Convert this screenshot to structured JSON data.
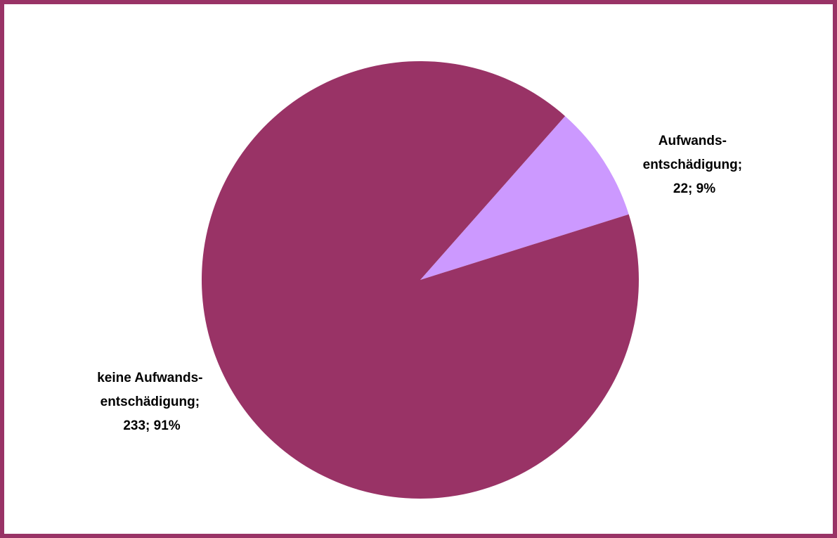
{
  "chart_data": {
    "type": "pie",
    "title": "",
    "slices": [
      {
        "label_lines": [
          "Aufwands-",
          "entschädigung;",
          "22; 9%"
        ],
        "value": 22,
        "percent": "9%",
        "color": "#cc99ff"
      },
      {
        "label_lines": [
          "keine Aufwands-",
          "entschädigung;",
          "233; 91%"
        ],
        "value": 233,
        "percent": "91%",
        "color": "#993366"
      }
    ],
    "frame_color": "#993366",
    "legend": "none"
  }
}
